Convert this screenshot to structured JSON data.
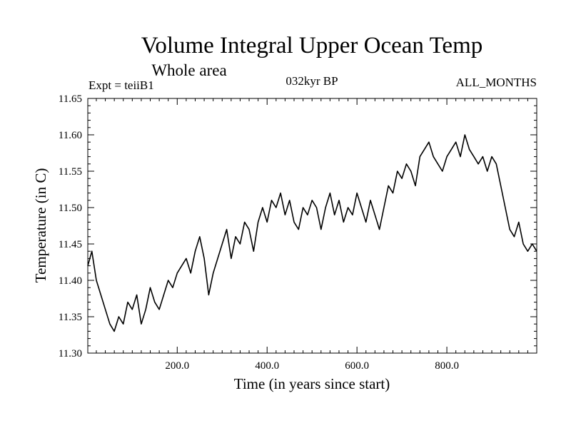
{
  "chart_data": {
    "type": "line",
    "title": "Volume Integral Upper Ocean Temp",
    "subtitle": "Whole area",
    "annotations": {
      "left": "Expt = teiiB1",
      "center": "032kyr BP",
      "right": "ALL_MONTHS"
    },
    "xlabel": "Time (in years since start)",
    "ylabel": "Temperature (in C)",
    "xlim": [
      1,
      1000
    ],
    "ylim": [
      11.3,
      11.65
    ],
    "x_ticks": [
      200,
      400,
      600,
      800
    ],
    "x_tick_labels": [
      "200.0",
      "400.0",
      "600.0",
      "800.0"
    ],
    "y_ticks": [
      11.3,
      11.35,
      11.4,
      11.45,
      11.5,
      11.55,
      11.6,
      11.65
    ],
    "y_tick_labels": [
      "11.30",
      "11.35",
      "11.40",
      "11.45",
      "11.50",
      "11.55",
      "11.60",
      "11.65"
    ],
    "grid": false,
    "legend": "none",
    "line_color": "#000000",
    "series": [
      {
        "x": [
          1,
          10,
          20,
          30,
          40,
          50,
          60,
          70,
          80,
          90,
          100,
          110,
          120,
          130,
          140,
          150,
          160,
          170,
          180,
          190,
          200,
          210,
          220,
          230,
          240,
          250,
          260,
          270,
          280,
          290,
          300,
          310,
          320,
          330,
          340,
          350,
          360,
          370,
          380,
          390,
          400,
          410,
          420,
          430,
          440,
          450,
          460,
          470,
          480,
          490,
          500,
          510,
          520,
          530,
          540,
          550,
          560,
          570,
          580,
          590,
          600,
          610,
          620,
          630,
          640,
          650,
          660,
          670,
          680,
          690,
          700,
          710,
          720,
          730,
          740,
          750,
          760,
          770,
          780,
          790,
          800,
          810,
          820,
          830,
          840,
          850,
          860,
          870,
          880,
          890,
          900,
          910,
          920,
          930,
          940,
          950,
          960,
          970,
          980,
          990,
          1000
        ],
        "values": [
          11.42,
          11.44,
          11.4,
          11.38,
          11.36,
          11.34,
          11.33,
          11.35,
          11.34,
          11.37,
          11.36,
          11.38,
          11.34,
          11.36,
          11.39,
          11.37,
          11.36,
          11.38,
          11.4,
          11.39,
          11.41,
          11.42,
          11.43,
          11.41,
          11.44,
          11.46,
          11.43,
          11.38,
          11.41,
          11.43,
          11.45,
          11.47,
          11.43,
          11.46,
          11.45,
          11.48,
          11.47,
          11.44,
          11.48,
          11.5,
          11.48,
          11.51,
          11.5,
          11.52,
          11.49,
          11.51,
          11.48,
          11.47,
          11.5,
          11.49,
          11.51,
          11.5,
          11.47,
          11.5,
          11.52,
          11.49,
          11.51,
          11.48,
          11.5,
          11.49,
          11.52,
          11.5,
          11.48,
          11.51,
          11.49,
          11.47,
          11.5,
          11.53,
          11.52,
          11.55,
          11.54,
          11.56,
          11.55,
          11.53,
          11.57,
          11.58,
          11.59,
          11.57,
          11.56,
          11.55,
          11.57,
          11.58,
          11.59,
          11.57,
          11.6,
          11.58,
          11.57,
          11.56,
          11.57,
          11.55,
          11.57,
          11.56,
          11.53,
          11.5,
          11.47,
          11.46,
          11.48,
          11.45,
          11.44,
          11.45,
          11.44
        ]
      }
    ]
  }
}
